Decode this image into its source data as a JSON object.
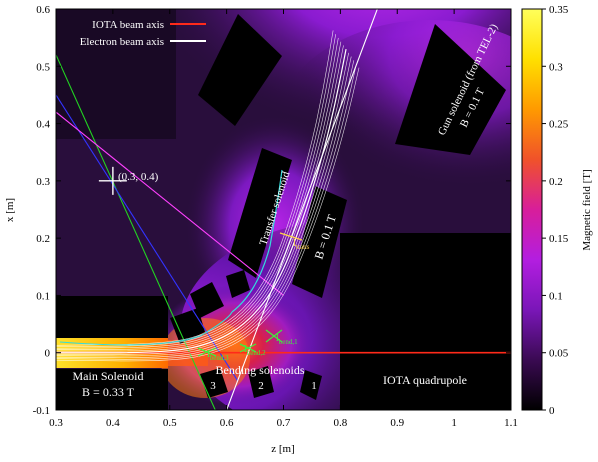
{
  "chart_data": {
    "type": "heatmap",
    "xlabel": "z [m]",
    "ylabel": "x [m]",
    "xlim": [
      0.3,
      1.1
    ],
    "ylim": [
      -0.1,
      0.6
    ],
    "x_ticks": [
      "0.3",
      "0.4",
      "0.5",
      "0.6",
      "0.7",
      "0.8",
      "0.9",
      "1",
      "1.1"
    ],
    "y_ticks": [
      "-0.1",
      "0",
      "0.1",
      "0.2",
      "0.3",
      "0.4",
      "0.5",
      "0.6"
    ],
    "colorbar": {
      "label": "Magnetic field [T]",
      "range": [
        0,
        0.35
      ],
      "ticks": [
        "0",
        "0.05",
        "0.1",
        "0.15",
        "0.2",
        "0.25",
        "0.3",
        "0.35"
      ],
      "colors": [
        "#000000",
        "#3a0a52",
        "#7a16b8",
        "#b31ee0",
        "#d81e9a",
        "#f0522a",
        "#ff9a00",
        "#ffe000",
        "#ffff5a"
      ]
    },
    "legend": [
      {
        "name": "IOTA beam axis",
        "color": "#ff2a1a"
      },
      {
        "name": "Electron beam axis",
        "color": "#ffffff"
      }
    ],
    "iota_beam_axis": {
      "x": 0.0,
      "z_range": [
        0.3,
        1.1
      ]
    },
    "electron_beam_axis": [
      [
        0.3,
        0.0
      ],
      [
        0.5,
        0.0
      ],
      [
        0.58,
        0.018
      ],
      [
        0.64,
        0.055
      ],
      [
        0.69,
        0.12
      ],
      [
        0.73,
        0.22
      ],
      [
        0.765,
        0.33
      ],
      [
        0.79,
        0.43
      ],
      [
        0.81,
        0.53
      ]
    ],
    "annotations": [
      {
        "text": "(0.3, 0.4)",
        "z": 0.4,
        "x": 0.3
      },
      {
        "text": "Main Solenoid",
        "z": 0.39,
        "x": -0.035
      },
      {
        "text": "B = 0.33 T",
        "z": 0.39,
        "x": -0.068
      },
      {
        "text": "Bending solenoids",
        "z": 0.655,
        "x": -0.025
      },
      {
        "text": "IOTA quadrupole",
        "z": 0.96,
        "x": -0.045
      },
      {
        "text": "Transfer solenoid",
        "z": 0.635,
        "x": 0.2
      },
      {
        "text": "B = 0.1 T",
        "z": 0.718,
        "x": 0.18
      },
      {
        "text": "Gun solenoid (from TEL-2)",
        "z": 0.905,
        "x": 0.43
      },
      {
        "text": "B = 0.1 T",
        "z": 0.935,
        "x": 0.415
      },
      {
        "text": "1",
        "z": 0.76,
        "x": -0.055
      },
      {
        "text": "2",
        "z": 0.665,
        "x": -0.055
      },
      {
        "text": "3",
        "z": 0.565,
        "x": -0.055
      }
    ],
    "cut_labels": [
      {
        "text": "l",
        "sub": "trans",
        "z": 0.675,
        "x": 0.195,
        "color": "#ffd24a"
      },
      {
        "text": "l",
        "sub": "bend,1",
        "z": 0.715,
        "x": 0.025,
        "color": "#3df03d"
      },
      {
        "text": "l",
        "sub": "bend,2",
        "z": 0.625,
        "x": 0.006,
        "color": "#3df03d"
      },
      {
        "text": "l",
        "sub": "bend,3",
        "z": 0.56,
        "x": -0.002,
        "color": "#3df03d"
      }
    ],
    "extra_lines": [
      {
        "name": "green",
        "color": "#22d422",
        "points": [
          [
            0.3,
            0.52
          ],
          [
            0.58,
            -0.1
          ]
        ]
      },
      {
        "name": "blue",
        "color": "#3333ff",
        "points": [
          [
            0.3,
            0.45
          ],
          [
            0.62,
            -0.05
          ]
        ]
      },
      {
        "name": "magenta",
        "color": "#ff40ff",
        "points": [
          [
            0.3,
            0.42
          ],
          [
            0.7,
            0.1
          ]
        ]
      }
    ]
  }
}
